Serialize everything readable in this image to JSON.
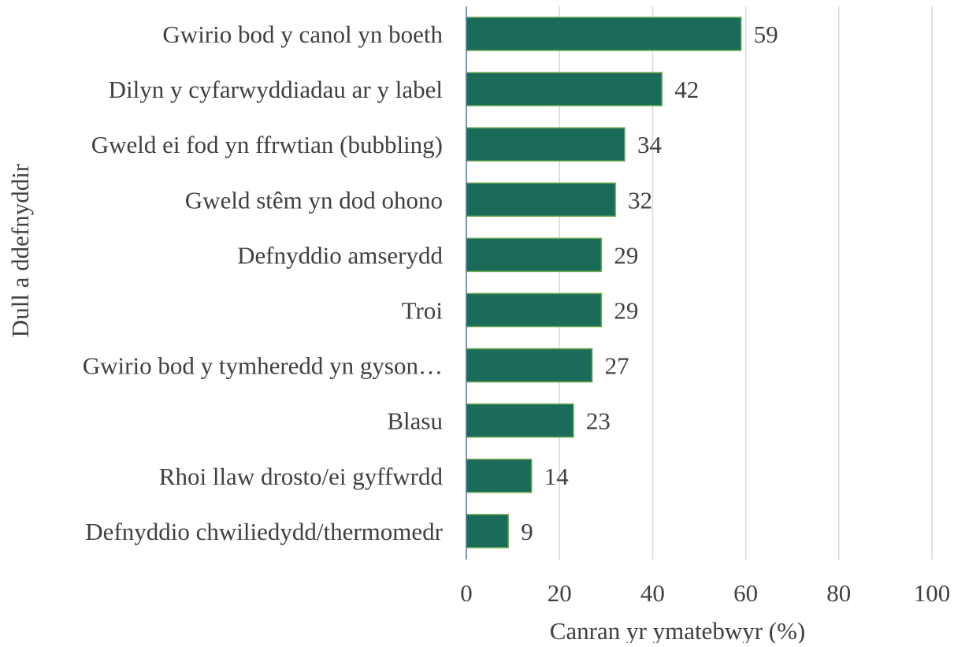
{
  "chart_data": {
    "type": "bar",
    "orientation": "horizontal",
    "categories": [
      "Gwirio bod y canol yn boeth",
      "Dilyn y cyfarwyddiadau ar y label",
      "Gweld ei fod yn ffrwtian (bubbling)",
      "Gweld stêm yn dod ohono",
      "Defnyddio amserydd",
      "Troi",
      "Gwirio bod y tymheredd yn gyson…",
      "Blasu",
      "Rhoi llaw drosto/ei gyffwrdd",
      "Defnyddio chwiliedydd/thermomedr"
    ],
    "values": [
      59,
      42,
      34,
      32,
      29,
      29,
      27,
      23,
      14,
      9
    ],
    "xlabel": "Canran yr ymatebwyr (%)",
    "ylabel": "Dull a ddefnyddir",
    "xlim": [
      0,
      100
    ],
    "xticks": [
      0,
      20,
      40,
      60,
      80,
      100
    ],
    "grid": "vertical",
    "data_labels": true,
    "bar_color": "#1b6b5a",
    "bar_edge_color": "#6aa84f",
    "axis_color": "#4472c4",
    "grid_color": "#d9d9d9",
    "text_color": "#404040"
  }
}
